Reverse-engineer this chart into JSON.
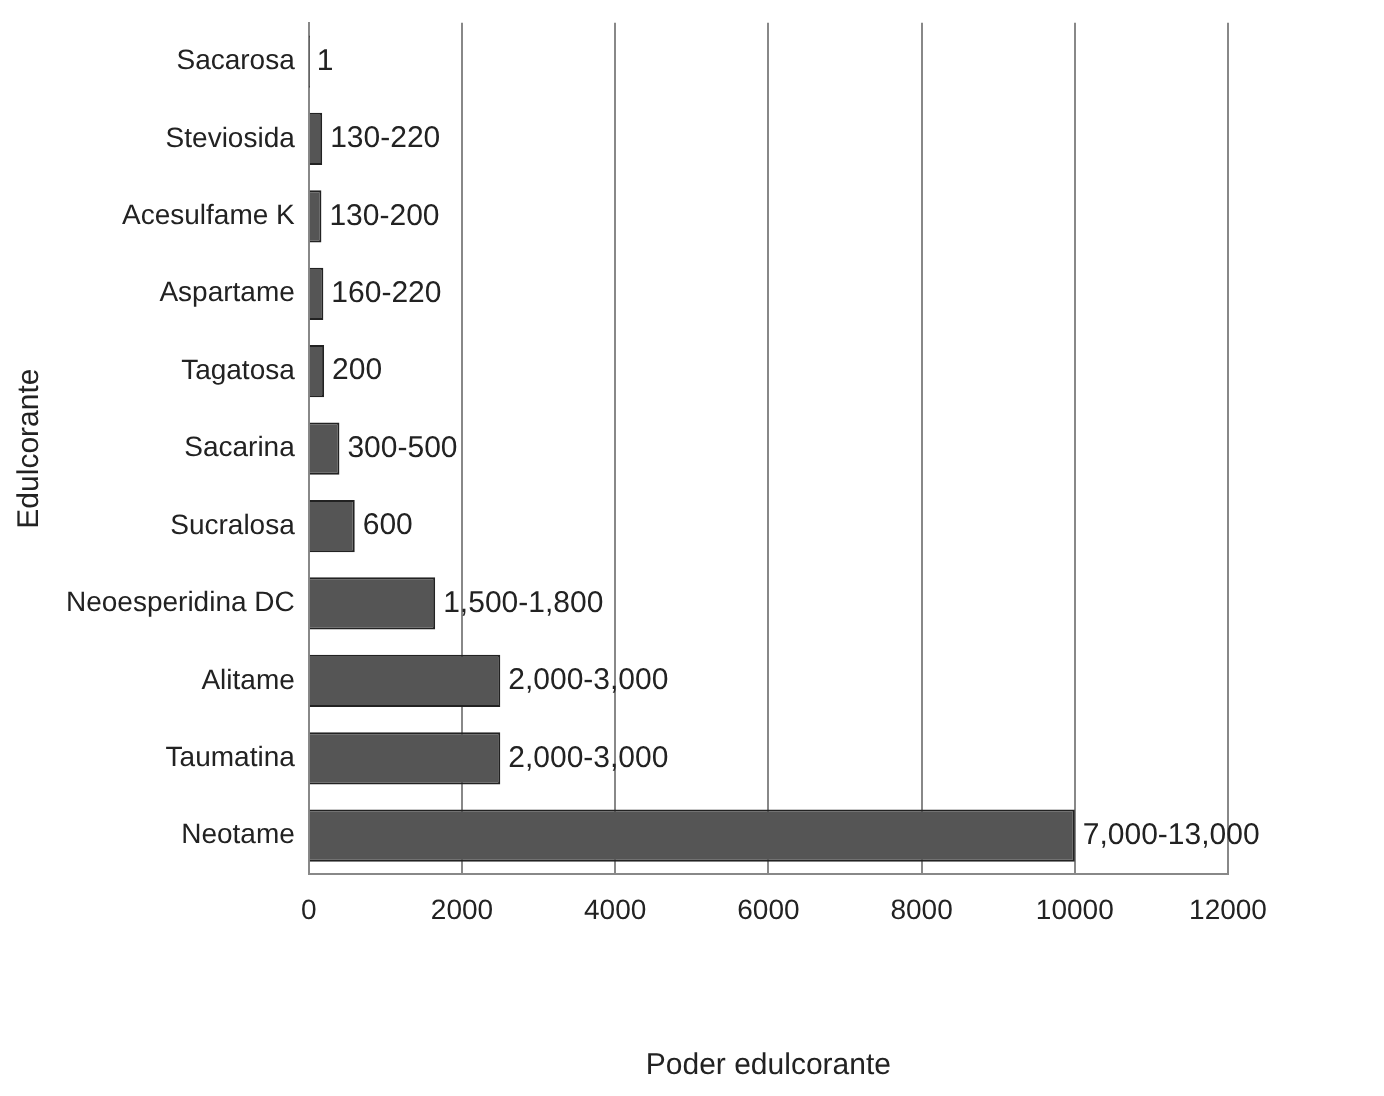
{
  "chart_data": {
    "type": "bar",
    "orientation": "horizontal",
    "xlabel": "Poder edulcorante",
    "ylabel": "Edulcorante",
    "categories": [
      "Sacarosa",
      "Steviosida",
      "Acesulfame K",
      "Aspartame",
      "Tagatosa",
      "Sacarina",
      "Sucralosa",
      "Neoesperidina DC",
      "Alitame",
      "Taumatina",
      "Neotame"
    ],
    "values": [
      1,
      175,
      165,
      190,
      200,
      400,
      600,
      1650,
      2500,
      2500,
      10000
    ],
    "value_labels": [
      "1",
      "130-220",
      "130-200",
      "160-220",
      "200",
      "300-500",
      "600",
      "1,500-1,800",
      "2,000-3,000",
      "2,000-3,000",
      "7,000-13,000"
    ],
    "color": "#555555",
    "xlim": [
      0,
      12000
    ],
    "xticks": [
      0,
      2000,
      4000,
      6000,
      8000,
      10000,
      12000
    ],
    "grid": "x",
    "legend": false
  }
}
